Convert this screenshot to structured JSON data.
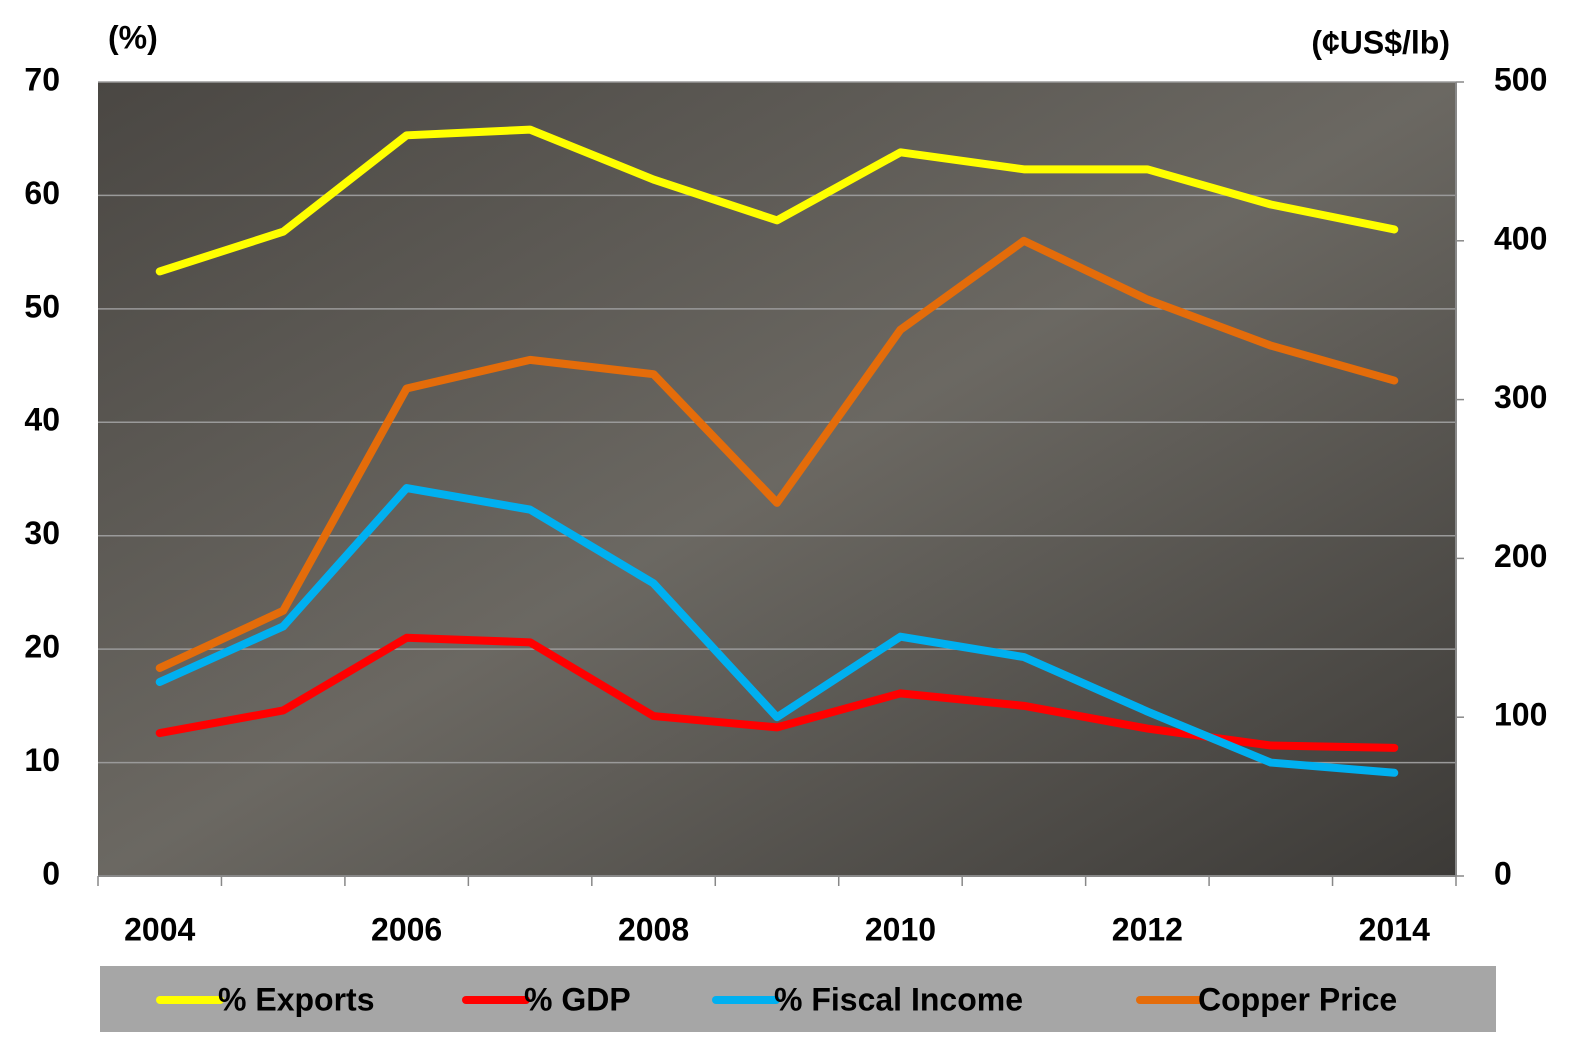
{
  "chart_data": {
    "type": "line",
    "y_label": "(%)",
    "y2_label": "(¢US$/lb)",
    "categories": [
      "2004",
      null,
      "2006",
      null,
      "2008",
      null,
      "2010",
      null,
      "2012",
      null,
      "2014"
    ],
    "ylim": [
      0,
      70
    ],
    "yticks": [
      0,
      10,
      20,
      30,
      40,
      50,
      60,
      70
    ],
    "y2lim": [
      0,
      500
    ],
    "y2ticks": [
      0,
      100,
      200,
      300,
      400,
      500
    ],
    "grid": true,
    "legend": "bottom",
    "series": [
      {
        "name": "% Exports",
        "color": "#ffff00",
        "values": [
          53.3,
          56.8,
          65.3,
          65.8,
          61.4,
          57.8,
          63.8,
          62.3,
          62.3,
          59.2,
          57.0
        ]
      },
      {
        "name": "% GDP",
        "color": "#ff0000",
        "values": [
          12.6,
          14.6,
          21.0,
          20.6,
          14.1,
          13.1,
          16.1,
          15.0,
          13.0,
          11.5,
          11.3
        ]
      },
      {
        "name": "% Fiscal Income",
        "color": "#00b0f0",
        "values": [
          17.1,
          22.0,
          34.2,
          32.3,
          25.8,
          14.0,
          21.1,
          19.3,
          14.5,
          10.0,
          9.1
        ]
      },
      {
        "name": "Copper Price",
        "color": "#e46c0a",
        "axis": "y2",
        "values": [
          131,
          167,
          307,
          325,
          316,
          235,
          344,
          400,
          363,
          334,
          312
        ]
      }
    ]
  }
}
